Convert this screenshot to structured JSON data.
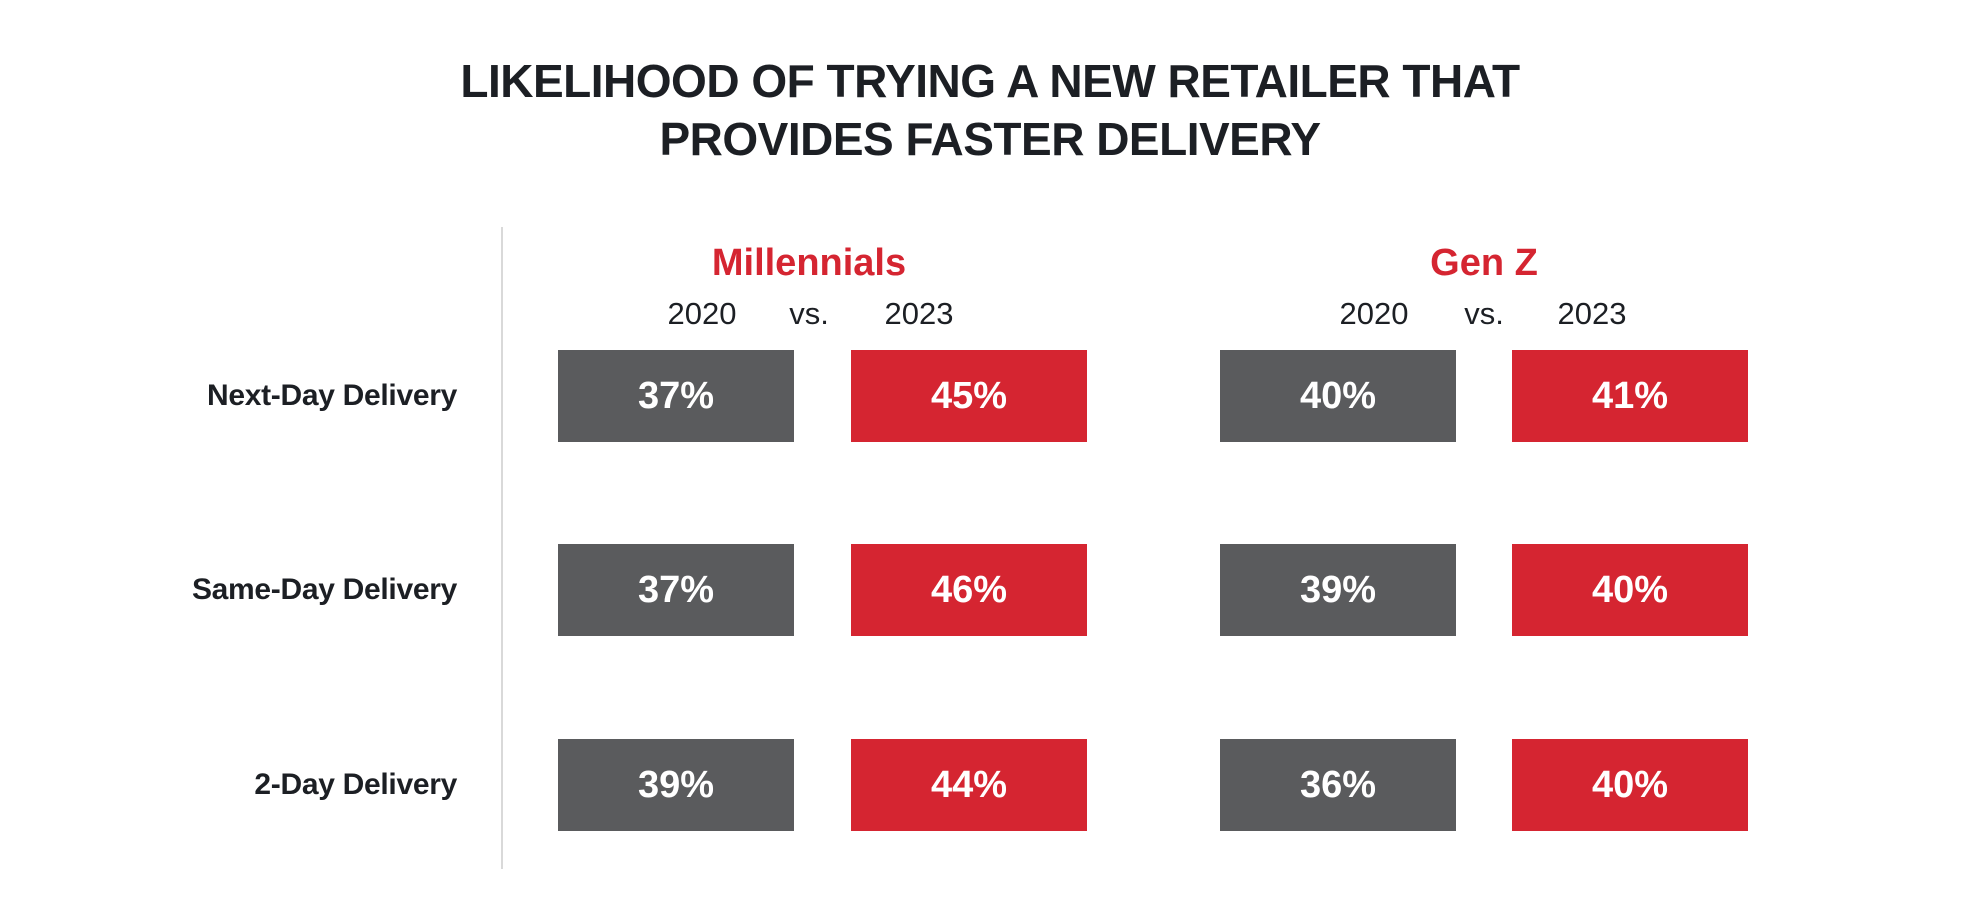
{
  "chart_data": {
    "type": "table",
    "title_lines": [
      "LIKELIHOOD OF TRYING A NEW RETAILER THAT",
      "PROVIDES FASTER DELIVERY"
    ],
    "categories": [
      "Next-Day Delivery",
      "Same-Day Delivery",
      "2-Day Delivery"
    ],
    "groups": [
      {
        "name": "Millennials",
        "years": [
          "2020",
          "vs.",
          "2023"
        ],
        "series": [
          {
            "name": "2020",
            "values": [
              "37%",
              "37%",
              "39%"
            ]
          },
          {
            "name": "2023",
            "values": [
              "45%",
              "46%",
              "44%"
            ]
          }
        ]
      },
      {
        "name": "Gen Z",
        "years": [
          "2020",
          "vs.",
          "2023"
        ],
        "series": [
          {
            "name": "2020",
            "values": [
              "40%",
              "39%",
              "36%"
            ]
          },
          {
            "name": "2023",
            "values": [
              "41%",
              "40%",
              "40%"
            ]
          }
        ]
      }
    ],
    "colors": {
      "2020": "#5a5b5d",
      "2023": "#d52531",
      "group_label": "#d52531"
    }
  }
}
